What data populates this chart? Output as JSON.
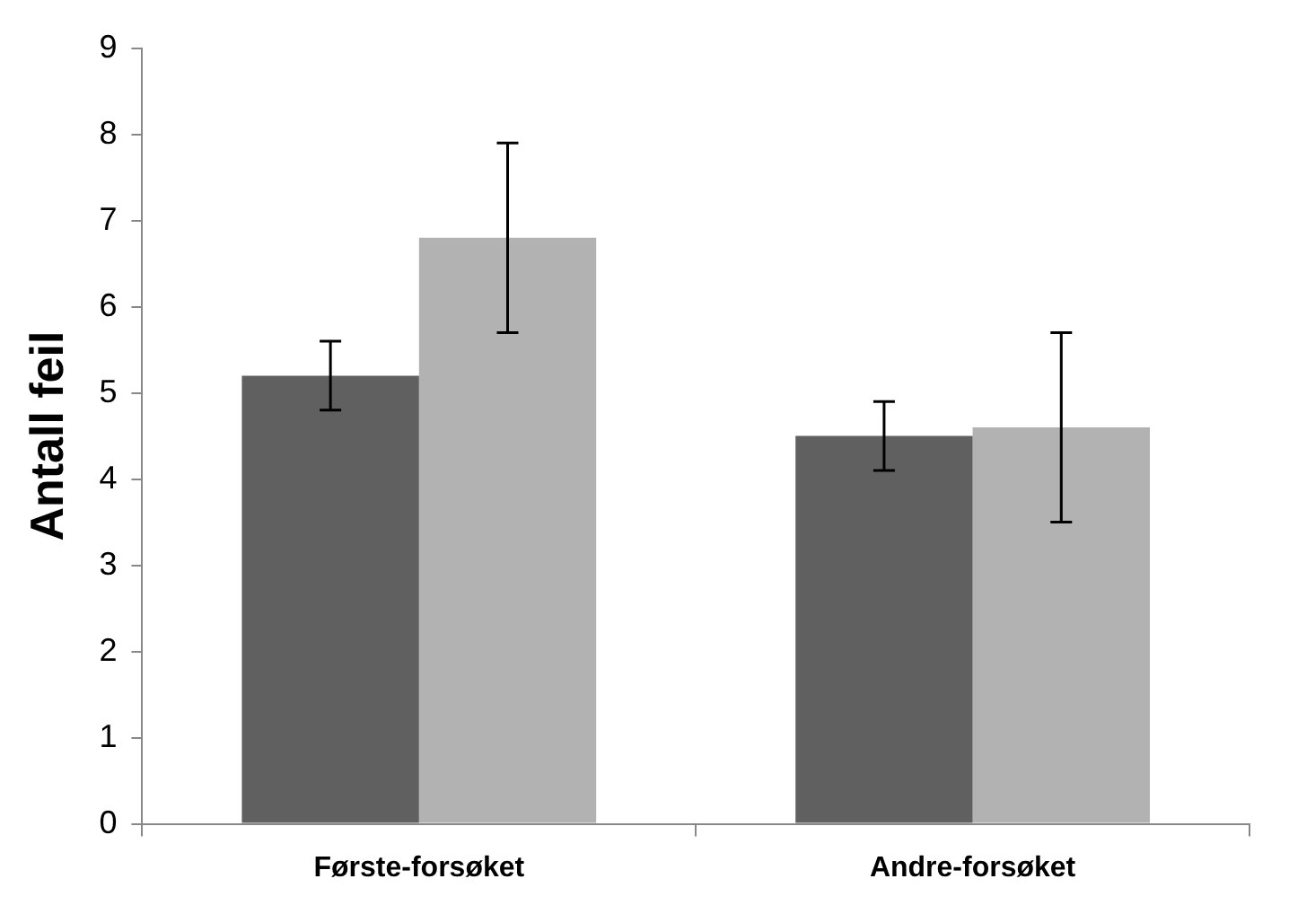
{
  "chart_data": {
    "type": "bar",
    "ylabel": "Antall feil",
    "categories": [
      "Første-forsøket",
      "Andre-forsøket"
    ],
    "series": [
      {
        "color": "#606060",
        "values": [
          5.2,
          4.5
        ],
        "errors": [
          0.4,
          0.4
        ]
      },
      {
        "color": "#b2b2b2",
        "values": [
          6.8,
          4.6
        ],
        "errors": [
          1.1,
          1.1
        ]
      }
    ],
    "ylim": [
      0,
      9
    ],
    "yticks": [
      0,
      1,
      2,
      3,
      4,
      5,
      6,
      7,
      8,
      9
    ],
    "grid": false,
    "legend": false
  }
}
